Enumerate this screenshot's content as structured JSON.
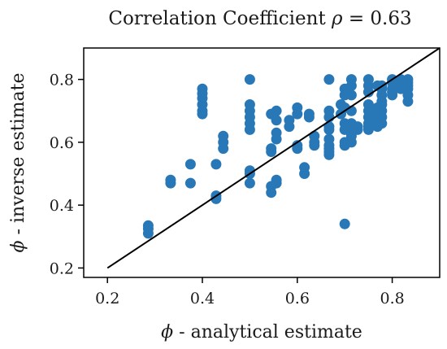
{
  "colors": {
    "points": "#2878b8",
    "fit_line": "#000000",
    "frame": "#000000",
    "text": "#1a1a1a"
  },
  "chart_data": {
    "type": "scatter",
    "title_prefix": "Correlation Coefficient ",
    "title_symbol": "ρ",
    "title_suffix": " = 0.63",
    "xlabel_symbol": "ϕ",
    "xlabel_text": " - analytical estimate",
    "ylabel_symbol": "ϕ",
    "ylabel_text": " - inverse estimate",
    "xlim": [
      0.15,
      0.9
    ],
    "ylim": [
      0.17,
      0.9
    ],
    "xticks": [
      0.2,
      0.4,
      0.6,
      0.8
    ],
    "yticks": [
      0.2,
      0.4,
      0.6,
      0.8
    ],
    "xtick_labels": [
      "0.2",
      "0.4",
      "0.6",
      "0.8"
    ],
    "ytick_labels": [
      "0.2",
      "0.4",
      "0.6",
      "0.8"
    ],
    "grid": false,
    "reference_line": {
      "x": [
        0.2,
        0.9
      ],
      "y": [
        0.2,
        0.9
      ]
    },
    "points": [
      [
        0.286,
        0.31
      ],
      [
        0.286,
        0.325
      ],
      [
        0.286,
        0.335
      ],
      [
        0.333,
        0.47
      ],
      [
        0.333,
        0.48
      ],
      [
        0.375,
        0.47
      ],
      [
        0.375,
        0.53
      ],
      [
        0.4,
        0.69
      ],
      [
        0.4,
        0.7
      ],
      [
        0.4,
        0.72
      ],
      [
        0.4,
        0.74
      ],
      [
        0.4,
        0.755
      ],
      [
        0.4,
        0.77
      ],
      [
        0.429,
        0.42
      ],
      [
        0.429,
        0.43
      ],
      [
        0.429,
        0.53
      ],
      [
        0.444,
        0.58
      ],
      [
        0.444,
        0.6
      ],
      [
        0.444,
        0.62
      ],
      [
        0.5,
        0.47
      ],
      [
        0.5,
        0.5
      ],
      [
        0.5,
        0.51
      ],
      [
        0.5,
        0.64
      ],
      [
        0.5,
        0.66
      ],
      [
        0.5,
        0.68
      ],
      [
        0.5,
        0.7
      ],
      [
        0.5,
        0.72
      ],
      [
        0.5,
        0.8
      ],
      [
        0.545,
        0.44
      ],
      [
        0.545,
        0.46
      ],
      [
        0.545,
        0.57
      ],
      [
        0.545,
        0.58
      ],
      [
        0.545,
        0.69
      ],
      [
        0.556,
        0.47
      ],
      [
        0.556,
        0.48
      ],
      [
        0.556,
        0.61
      ],
      [
        0.556,
        0.63
      ],
      [
        0.556,
        0.67
      ],
      [
        0.556,
        0.7
      ],
      [
        0.583,
        0.65
      ],
      [
        0.583,
        0.67
      ],
      [
        0.6,
        0.58
      ],
      [
        0.6,
        0.59
      ],
      [
        0.6,
        0.69
      ],
      [
        0.6,
        0.71
      ],
      [
        0.615,
        0.5
      ],
      [
        0.615,
        0.52
      ],
      [
        0.625,
        0.68
      ],
      [
        0.625,
        0.69
      ],
      [
        0.636,
        0.59
      ],
      [
        0.636,
        0.6
      ],
      [
        0.636,
        0.62
      ],
      [
        0.667,
        0.56
      ],
      [
        0.667,
        0.57
      ],
      [
        0.667,
        0.58
      ],
      [
        0.667,
        0.59
      ],
      [
        0.667,
        0.61
      ],
      [
        0.667,
        0.64
      ],
      [
        0.667,
        0.65
      ],
      [
        0.667,
        0.68
      ],
      [
        0.667,
        0.7
      ],
      [
        0.667,
        0.8
      ],
      [
        0.692,
        0.69
      ],
      [
        0.692,
        0.72
      ],
      [
        0.7,
        0.34
      ],
      [
        0.7,
        0.59
      ],
      [
        0.7,
        0.6
      ],
      [
        0.7,
        0.64
      ],
      [
        0.7,
        0.66
      ],
      [
        0.7,
        0.71
      ],
      [
        0.7,
        0.75
      ],
      [
        0.7,
        0.77
      ],
      [
        0.714,
        0.6
      ],
      [
        0.714,
        0.62
      ],
      [
        0.714,
        0.63
      ],
      [
        0.714,
        0.66
      ],
      [
        0.714,
        0.7
      ],
      [
        0.714,
        0.75
      ],
      [
        0.714,
        0.78
      ],
      [
        0.714,
        0.8
      ],
      [
        0.727,
        0.64
      ],
      [
        0.727,
        0.65
      ],
      [
        0.75,
        0.64
      ],
      [
        0.75,
        0.65
      ],
      [
        0.75,
        0.66
      ],
      [
        0.75,
        0.68
      ],
      [
        0.75,
        0.7
      ],
      [
        0.75,
        0.72
      ],
      [
        0.75,
        0.76
      ],
      [
        0.75,
        0.78
      ],
      [
        0.75,
        0.8
      ],
      [
        0.769,
        0.65
      ],
      [
        0.769,
        0.67
      ],
      [
        0.769,
        0.69
      ],
      [
        0.769,
        0.71
      ],
      [
        0.769,
        0.78
      ],
      [
        0.778,
        0.66
      ],
      [
        0.778,
        0.68
      ],
      [
        0.778,
        0.7
      ],
      [
        0.778,
        0.72
      ],
      [
        0.778,
        0.73
      ],
      [
        0.778,
        0.75
      ],
      [
        0.778,
        0.77
      ],
      [
        0.778,
        0.78
      ],
      [
        0.8,
        0.75
      ],
      [
        0.8,
        0.76
      ],
      [
        0.8,
        0.77
      ],
      [
        0.8,
        0.79
      ],
      [
        0.8,
        0.8
      ],
      [
        0.818,
        0.77
      ],
      [
        0.818,
        0.78
      ],
      [
        0.818,
        0.79
      ],
      [
        0.818,
        0.8
      ],
      [
        0.833,
        0.73
      ],
      [
        0.833,
        0.75
      ],
      [
        0.833,
        0.77
      ],
      [
        0.833,
        0.78
      ],
      [
        0.833,
        0.79
      ],
      [
        0.833,
        0.8
      ]
    ]
  }
}
